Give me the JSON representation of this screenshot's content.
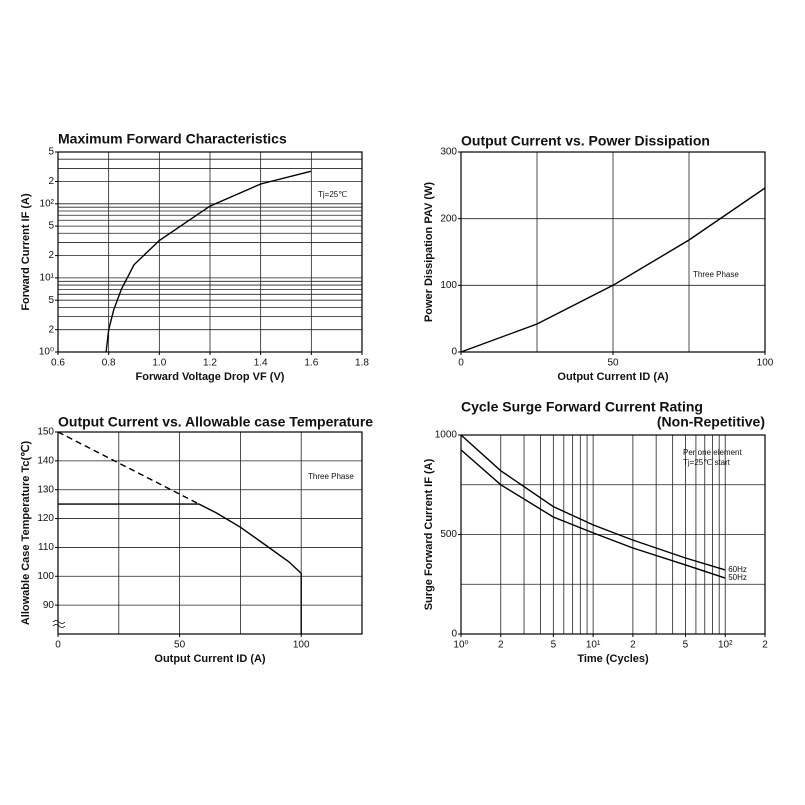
{
  "chart_data": [
    {
      "type": "line",
      "title": "Maximum Forward Characteristics",
      "xlabel": "Forward Voltage Drop VF (V)",
      "ylabel": "Forward Current IF (A)",
      "xlim": [
        0.6,
        1.8
      ],
      "xticks": [
        0.6,
        0.8,
        {
          "value": 1.0,
          "label": "1.0"
        },
        1.2,
        1.4,
        1.6,
        1.8
      ],
      "xgrid": [
        0.8,
        1.0,
        1.2,
        1.4,
        1.6
      ],
      "ylim": [
        1,
        500
      ],
      "ylog": true,
      "yticks": [
        {
          "value": 1,
          "label": "10⁰"
        },
        2,
        5,
        {
          "value": 10,
          "label": "10¹"
        },
        {
          "value": 20,
          "label": "2"
        },
        {
          "value": 50,
          "label": "5"
        },
        {
          "value": 100,
          "label": "10²"
        },
        {
          "value": 200,
          "label": "2"
        },
        {
          "value": 500,
          "label": "5"
        }
      ],
      "ygrid": [
        2,
        3,
        4,
        5,
        6,
        7,
        8,
        9,
        10,
        20,
        30,
        40,
        50,
        60,
        70,
        80,
        90,
        100,
        200,
        300,
        400
      ],
      "annotations": [
        "Tj=25℃"
      ],
      "series": [
        {
          "color": "#000000",
          "x": [
            0.79,
            0.8,
            0.82,
            0.85,
            0.9,
            1.0,
            1.2,
            1.4,
            1.6
          ],
          "values": [
            1,
            2,
            3.7,
            7,
            15,
            32,
            93,
            185,
            275
          ]
        }
      ]
    },
    {
      "type": "line",
      "title": "Output Current vs. Power Dissipation",
      "xlabel": "Output Current ID (A)",
      "ylabel": "Power Dissipation PAV (W)",
      "xlim": [
        0,
        100
      ],
      "xticks": [
        0,
        50,
        100
      ],
      "xgrid": [
        25,
        50,
        75
      ],
      "ylim": [
        0,
        300
      ],
      "yticks": [
        0,
        100,
        200,
        300
      ],
      "ygrid": [
        100,
        200
      ],
      "annotations": [
        "Three Phase"
      ],
      "series": [
        {
          "color": "#000000",
          "x": [
            0,
            25,
            50,
            75,
            100
          ],
          "values": [
            0,
            42,
            100,
            168,
            246
          ]
        }
      ]
    },
    {
      "type": "line",
      "title": "Output Current vs. Allowable case Temperature",
      "xlabel": "Output Current ID (A)",
      "ylabel": "Allowable Case Temperature Tc(℃)",
      "xlim": [
        0,
        125
      ],
      "xticks": [
        0,
        50,
        100
      ],
      "xgrid": [
        25,
        50,
        75,
        100
      ],
      "ylim": [
        80,
        150
      ],
      "yticks": [
        90,
        100,
        110,
        120,
        130,
        140,
        150
      ],
      "ygrid": [
        90,
        100,
        110,
        120,
        130,
        140
      ],
      "annotations": [
        "Three Phase"
      ],
      "series": [
        {
          "color": "#000000",
          "dash": true,
          "x": [
            0,
            58
          ],
          "values": [
            150,
            125
          ]
        },
        {
          "color": "#000000",
          "x": [
            0,
            58,
            65,
            75,
            85,
            95,
            100,
            100
          ],
          "values": [
            125,
            125,
            122,
            117,
            111,
            105,
            101,
            80
          ]
        }
      ]
    },
    {
      "type": "line",
      "title": "Cycle Surge Forward Current Rating",
      "subtitle": "(Non-Repetitive)",
      "xlabel": "Time (Cycles)",
      "ylabel": "Surge Forward Current IF (A)",
      "xlim": [
        1,
        200
      ],
      "xlog": true,
      "xticks": [
        {
          "value": 1,
          "label": "10⁰"
        },
        2,
        5,
        {
          "value": 10,
          "label": "10¹"
        },
        {
          "value": 20,
          "label": "2"
        },
        {
          "value": 50,
          "label": "5"
        },
        {
          "value": 100,
          "label": "10²"
        },
        {
          "value": 200,
          "label": "2"
        }
      ],
      "xgrid": [
        2,
        3,
        4,
        5,
        6,
        7,
        8,
        9,
        10,
        20,
        30,
        40,
        50,
        60,
        70,
        80,
        90,
        100
      ],
      "ylim": [
        0,
        1000
      ],
      "yticks": [
        0,
        500,
        1000
      ],
      "ygrid": [
        250,
        500,
        750
      ],
      "annotations": [
        "Per one element",
        "Tj=25℃  start"
      ],
      "series": [
        {
          "name": "60Hz",
          "color": "#000000",
          "x": [
            1,
            2,
            5,
            10,
            20,
            50,
            100
          ],
          "values": [
            1000,
            820,
            640,
            548,
            472,
            382,
            322
          ]
        },
        {
          "name": "50Hz",
          "color": "#000000",
          "x": [
            1,
            2,
            5,
            10,
            20,
            50,
            100
          ],
          "values": [
            925,
            750,
            588,
            508,
            432,
            347,
            281
          ]
        }
      ]
    }
  ]
}
